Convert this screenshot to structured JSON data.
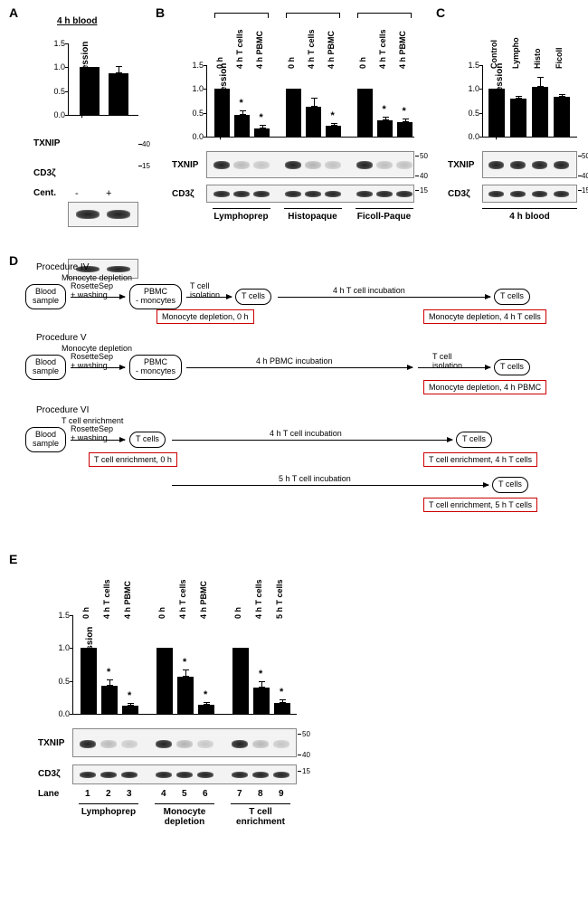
{
  "labels": {
    "yAxis": "TXNIP expression",
    "txnip": "TXNIP",
    "cd3z": "CD3ζ",
    "cent": "Cent.",
    "lane": "Lane"
  },
  "panels": {
    "A": {
      "title": "4 h blood",
      "xlabels": [
        "-",
        "+"
      ],
      "ymax": 1.5,
      "ytick_step": 0.5,
      "bars": [
        {
          "h": 1.0,
          "err": 0.0
        },
        {
          "h": 0.88,
          "err": 0.12
        }
      ],
      "mw": [
        "40",
        "15"
      ]
    },
    "B": {
      "headers": [
        "0 h",
        "4 h T cells",
        "4 h PBMC",
        "0 h",
        "4 h T cells",
        "4 h PBMC",
        "0 h",
        "4 h T cells",
        "4 h PBMC"
      ],
      "ymax": 1.5,
      "ytick_step": 0.5,
      "bars": [
        {
          "h": 1.0,
          "err": 0.0
        },
        {
          "h": 0.45,
          "err": 0.1,
          "star": true
        },
        {
          "h": 0.18,
          "err": 0.06,
          "star": true
        },
        {
          "h": 1.0,
          "err": 0.0
        },
        {
          "h": 0.62,
          "err": 0.2
        },
        {
          "h": 0.22,
          "err": 0.07,
          "star": true
        },
        {
          "h": 1.0,
          "err": 0.0
        },
        {
          "h": 0.35,
          "err": 0.06,
          "star": true
        },
        {
          "h": 0.3,
          "err": 0.08,
          "star": true
        }
      ],
      "groups": [
        "Lymphoprep",
        "Histopaque",
        "Ficoll-Paque"
      ],
      "mw": [
        "50",
        "40",
        "15"
      ]
    },
    "C": {
      "headers": [
        "Control",
        "Lympho",
        "Histo",
        "Ficoll"
      ],
      "ymax": 1.5,
      "ytick_step": 0.5,
      "bars": [
        {
          "h": 1.0,
          "err": 0.0
        },
        {
          "h": 0.8,
          "err": 0.06
        },
        {
          "h": 1.05,
          "err": 0.2
        },
        {
          "h": 0.83,
          "err": 0.06
        }
      ],
      "group": "4 h blood",
      "mw": [
        "50",
        "40",
        "15"
      ]
    },
    "D": {
      "procedures": {
        "IV": {
          "title": "Procedure IV",
          "sub": "Monocyte depletion",
          "boxes": [
            "Blood\nsample",
            "PBMC\n- moncytes",
            "T cells",
            "T cells"
          ],
          "arrowLabs": [
            "RosetteSep\n+ washing",
            "T cell\nisolation",
            "4 h T cell incubation"
          ],
          "redBoxes": [
            "Monocyte depletion, 0 h",
            "Monocyte depletion, 4 h T cells"
          ]
        },
        "V": {
          "title": "Procedure V",
          "sub": "Monocyte depletion",
          "boxes": [
            "Blood\nsample",
            "PBMC\n- moncytes",
            "T cells"
          ],
          "arrowLabs": [
            "RosetteSep\n+ washing",
            "4 h PBMC incubation",
            "T cell\nisolation"
          ],
          "redBoxes": [
            "Monocyte depletion, 4 h PBMC"
          ]
        },
        "VI": {
          "title": "Procedure VI",
          "sub": "T cell enrichment",
          "boxes": [
            "Blood\nsample",
            "T cells",
            "T cells",
            "T cells"
          ],
          "arrowLabs": [
            "RosetteSep\n+ washing",
            "4 h T cell incubation",
            "5 h T cell incubation"
          ],
          "redBoxes": [
            "T cell enrichment, 0 h",
            "T cell enrichment, 4 h T cells",
            "T cell enrichment, 5 h T cells"
          ]
        }
      }
    },
    "E": {
      "headers": [
        "0 h",
        "4 h T cells",
        "4 h PBMC",
        "0 h",
        "4 h T cells",
        "4 h PBMC",
        "0 h",
        "4 h T cells",
        "5 h T cells"
      ],
      "ymax": 1.5,
      "ytick_step": 0.5,
      "bars": [
        {
          "h": 1.0,
          "err": 0.0
        },
        {
          "h": 0.42,
          "err": 0.1,
          "star": true
        },
        {
          "h": 0.12,
          "err": 0.04,
          "star": true
        },
        {
          "h": 1.0,
          "err": 0.0
        },
        {
          "h": 0.56,
          "err": 0.11,
          "star": true
        },
        {
          "h": 0.14,
          "err": 0.04,
          "star": true
        },
        {
          "h": 1.0,
          "err": 0.0
        },
        {
          "h": 0.4,
          "err": 0.09,
          "star": true
        },
        {
          "h": 0.17,
          "err": 0.05,
          "star": true
        }
      ],
      "groups": [
        "Lymphoprep",
        "Monocyte\ndepletion",
        "T cell\nenrichment"
      ],
      "lanes": [
        "1",
        "2",
        "3",
        "4",
        "5",
        "6",
        "7",
        "8",
        "9"
      ],
      "mw": [
        "50",
        "40",
        "15"
      ]
    }
  }
}
